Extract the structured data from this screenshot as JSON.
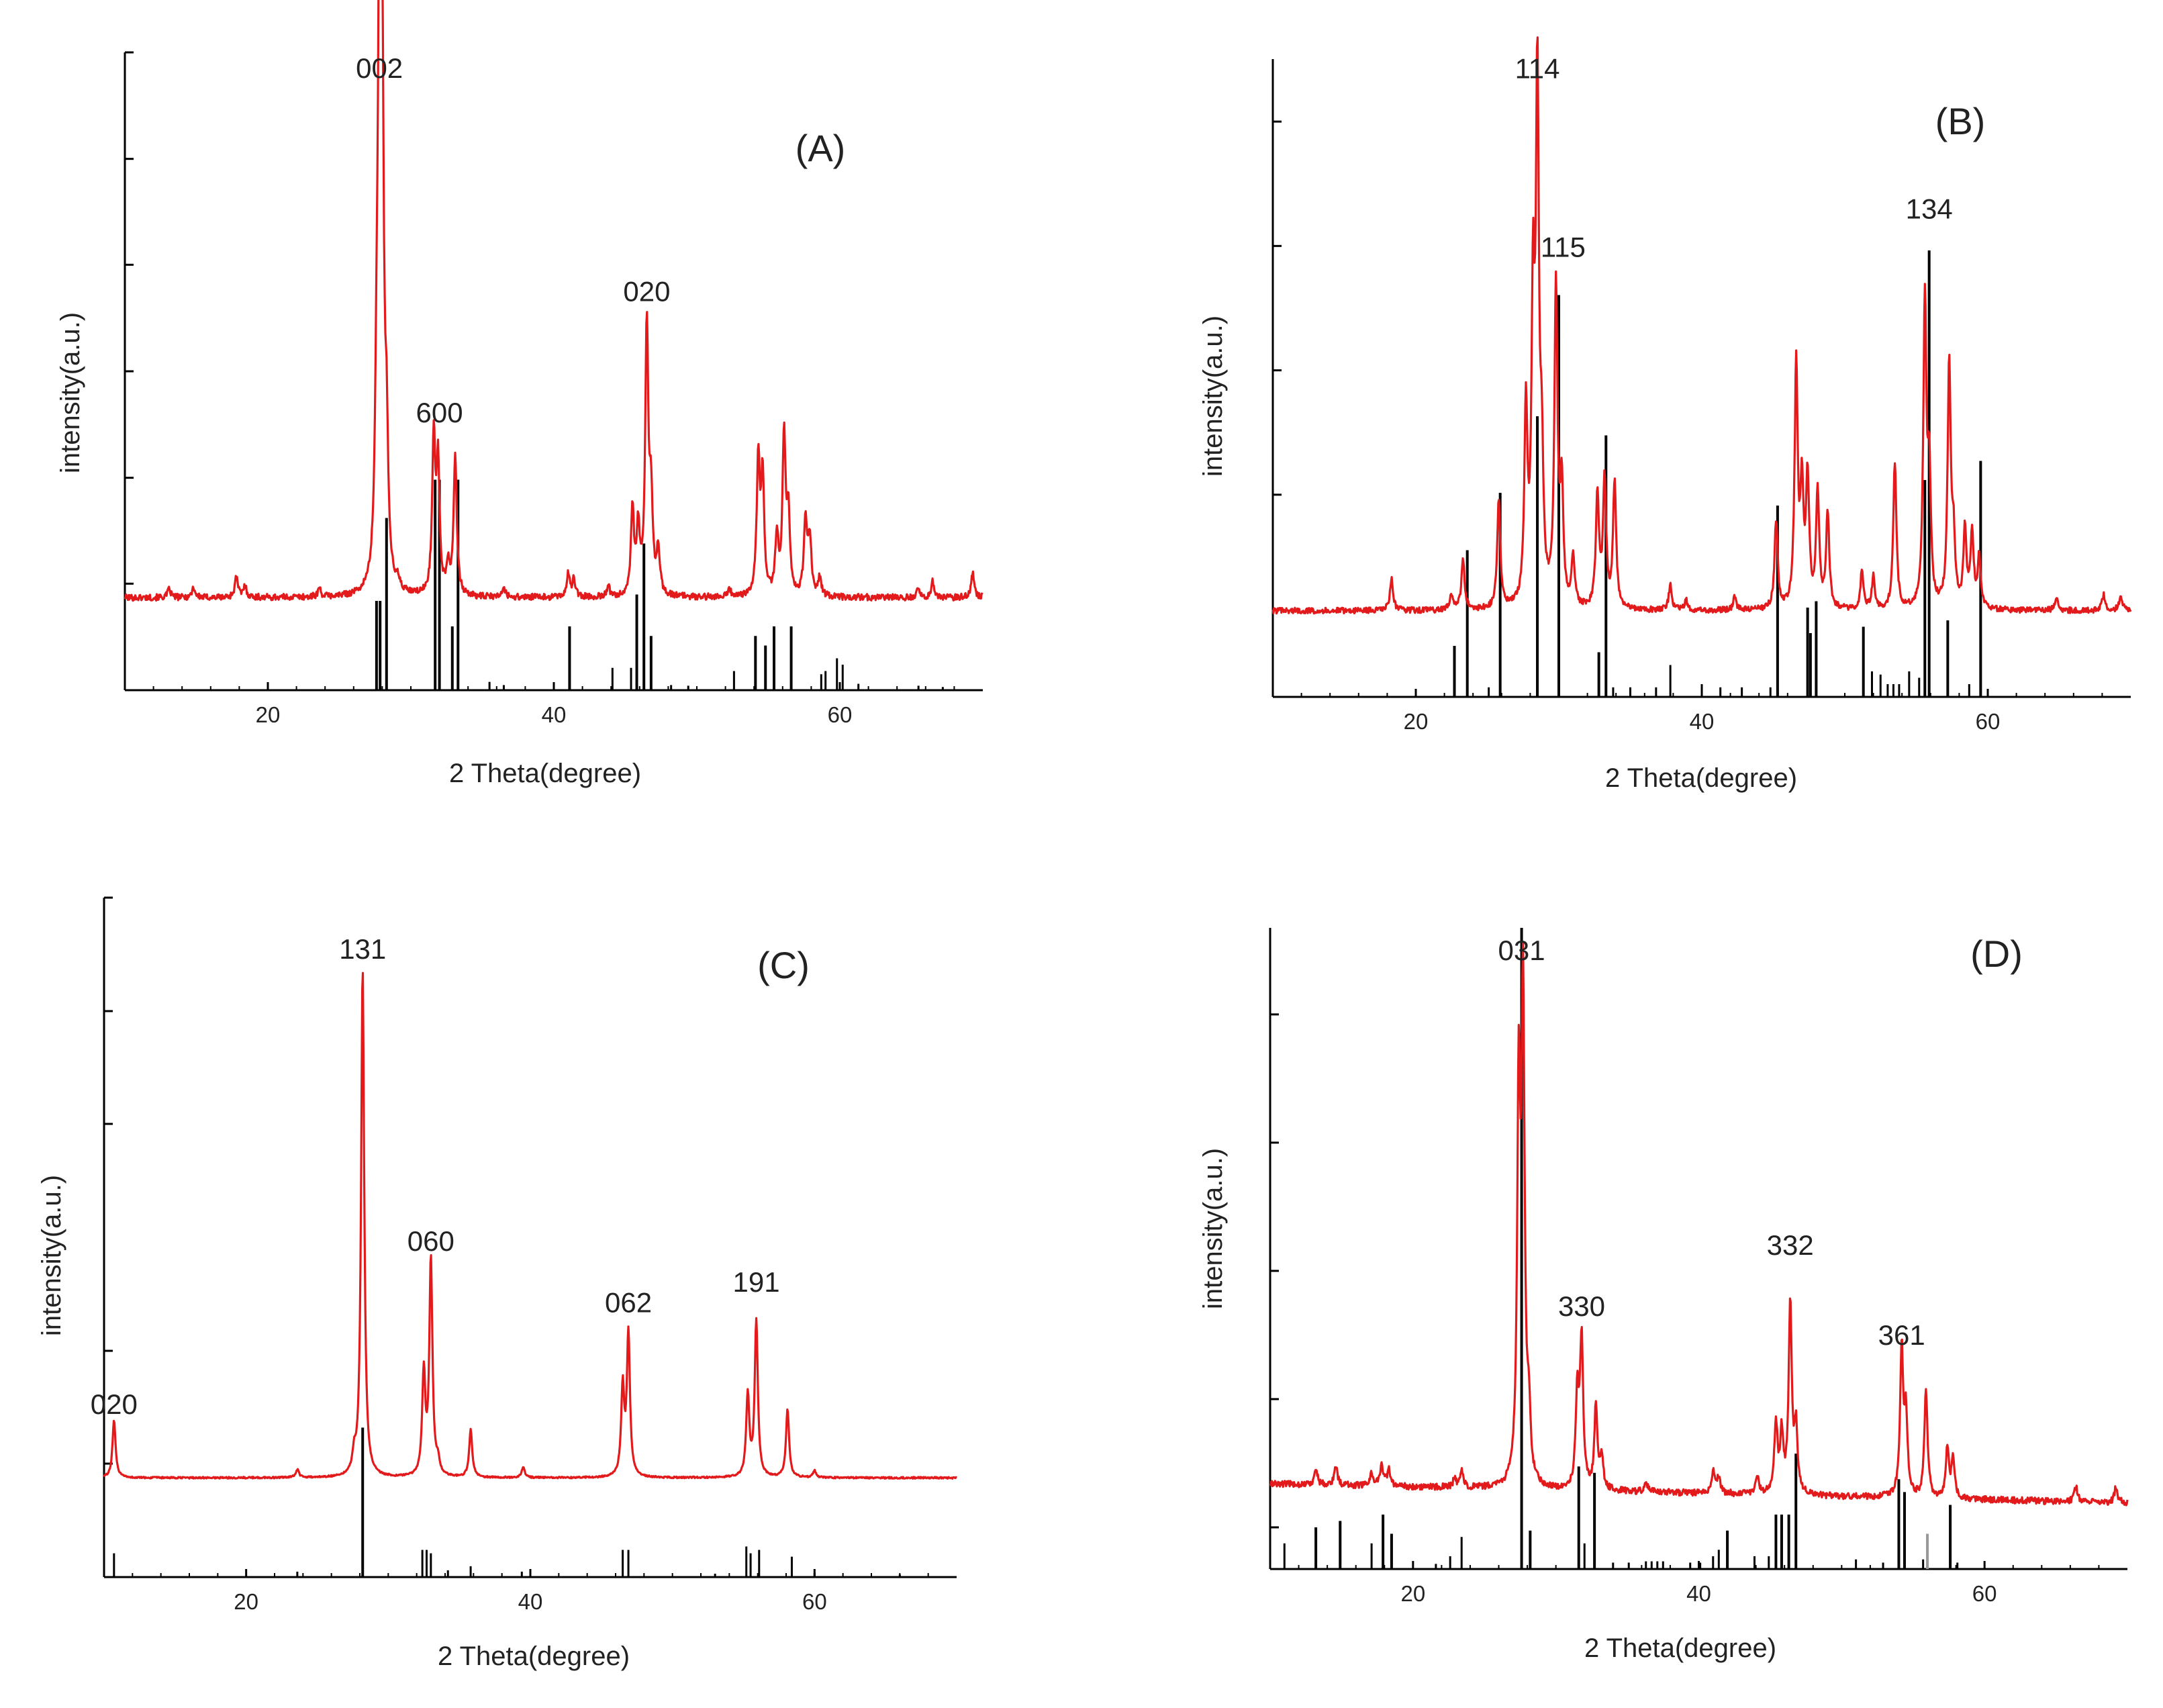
{
  "figure": {
    "colors": {
      "pattern": "#e31a1c",
      "reference": "#000000",
      "reference_faint": "#999999"
    }
  },
  "chart_data": [
    {
      "type": "line",
      "panel_label": "(A)",
      "xlabel": "2 Theta(degree)",
      "ylabel": "intensity(a.u.)",
      "xlim": [
        10,
        70
      ],
      "ylim": [
        0,
        100
      ],
      "xticks": [
        "20",
        "40",
        "60"
      ],
      "xtick_values": [
        20,
        40,
        60
      ],
      "yticks": [
        16.7,
        33.3,
        50,
        66.7,
        83.3,
        100
      ],
      "baseline": 14.5,
      "noise": 0.5,
      "series": [
        {
          "name": "measured pattern",
          "peaks": [
            [
              13.1,
              1.3
            ],
            [
              14.8,
              1.6
            ],
            [
              17.8,
              3.2
            ],
            [
              18.4,
              1.8
            ],
            [
              23.6,
              1.3
            ],
            [
              27.6,
              20
            ],
            [
              27.8,
              86
            ],
            [
              28.0,
              72
            ],
            [
              28.3,
              20
            ],
            [
              29.1,
              1.5
            ],
            [
              31.6,
              24
            ],
            [
              31.9,
              20
            ],
            [
              32.6,
              4.5
            ],
            [
              33.1,
              22
            ],
            [
              36.5,
              1.5
            ],
            [
              41.0,
              3.6
            ],
            [
              41.4,
              2.8
            ],
            [
              43.8,
              1.6
            ],
            [
              45.5,
              13
            ],
            [
              45.9,
              10
            ],
            [
              46.5,
              42
            ],
            [
              46.8,
              14
            ],
            [
              47.3,
              7
            ],
            [
              52.3,
              1.1
            ],
            [
              54.3,
              21
            ],
            [
              54.6,
              18
            ],
            [
              55.6,
              9
            ],
            [
              56.1,
              25
            ],
            [
              56.4,
              12
            ],
            [
              57.6,
              12
            ],
            [
              57.9,
              9
            ],
            [
              58.6,
              3
            ],
            [
              65.5,
              1.6
            ],
            [
              66.5,
              2.5
            ],
            [
              69.3,
              4
            ]
          ]
        },
        {
          "name": "reference lines",
          "sticks": [
            [
              27.6,
              14
            ],
            [
              27.85,
              14
            ],
            [
              28.3,
              27
            ],
            [
              31.7,
              33
            ],
            [
              32.0,
              33
            ],
            [
              32.9,
              10
            ],
            [
              33.3,
              33
            ],
            [
              35.5,
              1.3
            ],
            [
              36.5,
              0.8
            ],
            [
              41.1,
              10
            ],
            [
              44.1,
              3.5
            ],
            [
              45.4,
              3.5
            ],
            [
              45.8,
              15
            ],
            [
              46.3,
              23
            ],
            [
              46.8,
              8.5
            ],
            [
              48.2,
              0.8
            ],
            [
              49.4,
              0.7
            ],
            [
              52.6,
              3
            ],
            [
              54.1,
              8.5
            ],
            [
              54.8,
              7
            ],
            [
              55.4,
              10
            ],
            [
              56.6,
              10
            ],
            [
              58.7,
              2.5
            ],
            [
              59.0,
              3
            ],
            [
              59.8,
              5
            ],
            [
              60.2,
              4
            ],
            [
              61.3,
              1
            ],
            [
              65.5,
              0.7
            ],
            [
              67.2,
              0.5
            ]
          ]
        }
      ],
      "annotations": [
        {
          "text": "002",
          "x": 27.8,
          "y": 96
        },
        {
          "text": "600",
          "x": 32.0,
          "y": 42
        },
        {
          "text": "020",
          "x": 46.5,
          "y": 61
        }
      ]
    },
    {
      "type": "line",
      "panel_label": "(B)",
      "xlabel": "2 Theta(degree)",
      "ylabel": "intensity(a.u.)",
      "xlim": [
        10,
        70
      ],
      "ylim": [
        0,
        100
      ],
      "xticks": [
        "20",
        "40",
        "60"
      ],
      "xtick_values": [
        20,
        40,
        60
      ],
      "yticks": [
        31.7,
        51.2,
        70.7,
        90.2
      ],
      "baseline": 13.5,
      "noise": 0.45,
      "series": [
        {
          "name": "measured pattern",
          "peaks": [
            [
              18.3,
              5
            ],
            [
              22.5,
              2.5
            ],
            [
              23.3,
              8
            ],
            [
              25.8,
              17
            ],
            [
              27.7,
              30
            ],
            [
              28.2,
              45
            ],
            [
              28.5,
              79
            ],
            [
              28.8,
              20
            ],
            [
              29.8,
              50
            ],
            [
              30.2,
              18
            ],
            [
              31.0,
              8
            ],
            [
              32.7,
              18
            ],
            [
              33.2,
              20
            ],
            [
              33.9,
              20
            ],
            [
              37.8,
              4
            ],
            [
              38.9,
              1.6
            ],
            [
              42.3,
              2
            ],
            [
              45.2,
              14
            ],
            [
              46.6,
              38
            ],
            [
              47.0,
              18
            ],
            [
              47.4,
              20
            ],
            [
              48.1,
              18
            ],
            [
              48.8,
              15
            ],
            [
              51.2,
              6
            ],
            [
              52.0,
              5
            ],
            [
              53.5,
              23
            ],
            [
              55.6,
              48
            ],
            [
              55.9,
              20
            ],
            [
              57.3,
              38
            ],
            [
              57.6,
              10
            ],
            [
              58.4,
              12
            ],
            [
              58.9,
              12
            ],
            [
              59.4,
              8
            ],
            [
              64.8,
              2
            ],
            [
              68.1,
              2.5
            ],
            [
              69.3,
              2.5
            ]
          ]
        },
        {
          "name": "reference lines",
          "sticks": [
            [
              22.7,
              8
            ],
            [
              23.6,
              23
            ],
            [
              25.1,
              1.5
            ],
            [
              25.9,
              32
            ],
            [
              28.5,
              44
            ],
            [
              30.0,
              63
            ],
            [
              32.8,
              7
            ],
            [
              33.3,
              41
            ],
            [
              33.8,
              1.5
            ],
            [
              35.0,
              1.5
            ],
            [
              36.8,
              1.5
            ],
            [
              37.8,
              5
            ],
            [
              40.0,
              2
            ],
            [
              41.3,
              1.5
            ],
            [
              42.8,
              1.5
            ],
            [
              44.8,
              1.5
            ],
            [
              45.3,
              30
            ],
            [
              47.4,
              14
            ],
            [
              47.6,
              10
            ],
            [
              48.0,
              15
            ],
            [
              51.3,
              11
            ],
            [
              51.9,
              4
            ],
            [
              52.5,
              3.5
            ],
            [
              53.0,
              2
            ],
            [
              53.4,
              2
            ],
            [
              53.8,
              2
            ],
            [
              54.5,
              4
            ],
            [
              55.2,
              3
            ],
            [
              55.6,
              34
            ],
            [
              55.9,
              70
            ],
            [
              57.2,
              12
            ],
            [
              58.7,
              2
            ],
            [
              59.5,
              37
            ]
          ]
        }
      ],
      "annotations": [
        {
          "text": "114",
          "x": 28.5,
          "y": 97
        },
        {
          "text": "115",
          "x": 30.3,
          "y": 69
        },
        {
          "text": "134",
          "x": 55.9,
          "y": 75
        }
      ]
    },
    {
      "type": "line",
      "panel_label": "(C)",
      "xlabel": "2 Theta(degree)",
      "ylabel": "intensity(a.u.)",
      "xlim": [
        10,
        70
      ],
      "ylim": [
        0,
        100
      ],
      "xticks": [
        "20",
        "40",
        "60"
      ],
      "xtick_values": [
        20,
        40,
        60
      ],
      "yticks": [
        16.7,
        33.3,
        66.7,
        83.3,
        100
      ],
      "baseline": 14.6,
      "noise": 0.12,
      "series": [
        {
          "name": "measured pattern",
          "peaks": [
            [
              10.7,
              8.5
            ],
            [
              23.6,
              1.2
            ],
            [
              27.6,
              2.5
            ],
            [
              28.2,
              75
            ],
            [
              32.5,
              15
            ],
            [
              33.0,
              32
            ],
            [
              33.5,
              2
            ],
            [
              35.8,
              7
            ],
            [
              39.5,
              1.5
            ],
            [
              46.5,
              13
            ],
            [
              46.9,
              21
            ],
            [
              55.3,
              12
            ],
            [
              55.9,
              23
            ],
            [
              58.1,
              10
            ],
            [
              60.0,
              1
            ]
          ]
        },
        {
          "name": "reference lines",
          "sticks": [
            [
              10.7,
              3.5
            ],
            [
              23.6,
              0.8
            ],
            [
              28.2,
              22
            ],
            [
              32.4,
              4
            ],
            [
              32.7,
              4
            ],
            [
              33.0,
              3.5
            ],
            [
              34.2,
              1
            ],
            [
              35.8,
              1.6
            ],
            [
              39.4,
              0.8
            ],
            [
              46.5,
              4
            ],
            [
              46.9,
              4
            ],
            [
              53.0,
              0.5
            ],
            [
              55.2,
              4.5
            ],
            [
              55.5,
              3.5
            ],
            [
              56.1,
              4
            ],
            [
              58.4,
              3
            ],
            [
              60.0,
              0.6
            ],
            [
              66.0,
              0.4
            ]
          ]
        }
      ],
      "annotations": [
        {
          "text": "020",
          "x": 10.7,
          "y": 24
        },
        {
          "text": "131",
          "x": 28.2,
          "y": 91
        },
        {
          "text": "060",
          "x": 33.0,
          "y": 48
        },
        {
          "text": "062",
          "x": 46.9,
          "y": 39
        },
        {
          "text": "191",
          "x": 55.9,
          "y": 42
        }
      ]
    },
    {
      "type": "line",
      "panel_label": "(D)",
      "xlabel": "2 Theta(degree)",
      "ylabel": "intensity(a.u.)",
      "xlim": [
        10,
        70
      ],
      "ylim": [
        0,
        100
      ],
      "xticks": [
        "20",
        "40",
        "60"
      ],
      "xtick_values": [
        20,
        40,
        60
      ],
      "yticks": [
        6.5,
        26.5,
        46.5,
        66.5,
        86.5
      ],
      "baseline": [
        13.3,
        10.3
      ],
      "noise": 0.5,
      "series": [
        {
          "name": "measured pattern",
          "peaks": [
            [
              13.2,
              2.5
            ],
            [
              14.6,
              3
            ],
            [
              17.1,
              2
            ],
            [
              17.8,
              3.5
            ],
            [
              18.3,
              2.5
            ],
            [
              22.9,
              1.2
            ],
            [
              23.4,
              2.5
            ],
            [
              27.4,
              60
            ],
            [
              27.7,
              75
            ],
            [
              28.1,
              10
            ],
            [
              31.5,
              15
            ],
            [
              31.8,
              23
            ],
            [
              32.8,
              13
            ],
            [
              33.2,
              5
            ],
            [
              36.3,
              1.5
            ],
            [
              41.0,
              3.5
            ],
            [
              41.4,
              2.5
            ],
            [
              44.1,
              2.5
            ],
            [
              45.4,
              11
            ],
            [
              45.8,
              9
            ],
            [
              46.4,
              30
            ],
            [
              46.8,
              10
            ],
            [
              54.2,
              23
            ],
            [
              54.5,
              12
            ],
            [
              55.9,
              17
            ],
            [
              57.4,
              8
            ],
            [
              57.8,
              6
            ],
            [
              66.4,
              2.5
            ],
            [
              69.2,
              2.5
            ]
          ]
        },
        {
          "name": "reference lines",
          "sticks": [
            [
              11.0,
              4
            ],
            [
              13.2,
              6.5
            ],
            [
              14.9,
              7.5
            ],
            [
              17.1,
              4
            ],
            [
              17.9,
              8.5
            ],
            [
              18.5,
              5.5
            ],
            [
              21.6,
              0.8
            ],
            [
              22.6,
              2
            ],
            [
              23.4,
              5
            ],
            [
              27.6,
              100
            ],
            [
              28.2,
              6
            ],
            [
              31.6,
              16
            ],
            [
              32.0,
              4
            ],
            [
              32.7,
              15
            ],
            [
              34.0,
              1
            ],
            [
              35.1,
              1
            ],
            [
              36.3,
              1.2
            ],
            [
              36.7,
              1.2
            ],
            [
              37.1,
              1.2
            ],
            [
              37.5,
              1.2
            ],
            [
              39.4,
              1
            ],
            [
              40.1,
              1
            ],
            [
              41.0,
              2
            ],
            [
              41.4,
              3
            ],
            [
              42.0,
              6
            ],
            [
              43.9,
              2
            ],
            [
              44.9,
              2
            ],
            [
              45.4,
              8.5
            ],
            [
              45.8,
              8.5
            ],
            [
              46.3,
              8.5
            ],
            [
              46.8,
              18
            ],
            [
              51.0,
              1.5
            ],
            [
              52.9,
              1
            ],
            [
              54.0,
              14
            ],
            [
              54.4,
              12
            ],
            [
              55.7,
              1.5
            ],
            [
              56.0,
              5.5,
              "grey"
            ],
            [
              57.6,
              10
            ],
            [
              58.1,
              1
            ]
          ]
        }
      ],
      "annotations": [
        {
          "text": "031",
          "x": 27.6,
          "y": 95
        },
        {
          "text": "330",
          "x": 31.8,
          "y": 39.5
        },
        {
          "text": "332",
          "x": 46.4,
          "y": 49
        },
        {
          "text": "361",
          "x": 54.2,
          "y": 35
        }
      ]
    }
  ]
}
